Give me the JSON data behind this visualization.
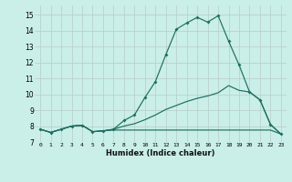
{
  "xlabel": "Humidex (Indice chaleur)",
  "bg_color": "#caeee8",
  "grid_color": "#b8ccc8",
  "line_color": "#1a7060",
  "xlim": [
    -0.5,
    23.5
  ],
  "ylim": [
    7.0,
    15.6
  ],
  "yticks": [
    7,
    8,
    9,
    10,
    11,
    12,
    13,
    14,
    15
  ],
  "xticks": [
    0,
    1,
    2,
    3,
    4,
    5,
    6,
    7,
    8,
    9,
    10,
    11,
    12,
    13,
    14,
    15,
    16,
    17,
    18,
    19,
    20,
    21,
    22,
    23
  ],
  "curve_x": [
    0,
    1,
    2,
    3,
    4,
    5,
    6,
    7,
    8,
    9,
    10,
    11,
    12,
    13,
    14,
    15,
    16,
    17,
    18,
    19,
    20,
    21,
    22,
    23
  ],
  "curve_y": [
    7.8,
    7.6,
    7.8,
    8.0,
    8.05,
    7.65,
    7.7,
    7.8,
    8.35,
    8.7,
    9.8,
    10.8,
    12.5,
    14.1,
    14.5,
    14.85,
    14.55,
    14.95,
    13.35,
    11.85,
    10.15,
    9.65,
    8.1,
    7.5
  ],
  "flat_x": [
    0,
    1,
    2,
    3,
    4,
    5,
    6,
    7,
    8,
    9,
    10,
    11,
    12,
    13,
    14,
    15,
    16,
    17,
    18,
    19,
    20,
    21,
    22,
    23
  ],
  "flat_y": [
    7.8,
    7.6,
    7.8,
    8.0,
    8.05,
    7.65,
    7.7,
    7.75,
    7.75,
    7.75,
    7.75,
    7.75,
    7.75,
    7.75,
    7.75,
    7.75,
    7.75,
    7.75,
    7.75,
    7.75,
    7.75,
    7.75,
    7.75,
    7.5
  ],
  "rise_x": [
    0,
    1,
    2,
    3,
    4,
    5,
    6,
    7,
    8,
    9,
    10,
    11,
    12,
    13,
    14,
    15,
    16,
    17,
    18,
    19,
    20,
    21,
    22,
    23
  ],
  "rise_y": [
    7.8,
    7.6,
    7.8,
    8.0,
    8.05,
    7.65,
    7.7,
    7.8,
    8.0,
    8.15,
    8.4,
    8.7,
    9.05,
    9.3,
    9.55,
    9.75,
    9.9,
    10.1,
    10.55,
    10.25,
    10.15,
    9.65,
    8.1,
    7.5
  ]
}
